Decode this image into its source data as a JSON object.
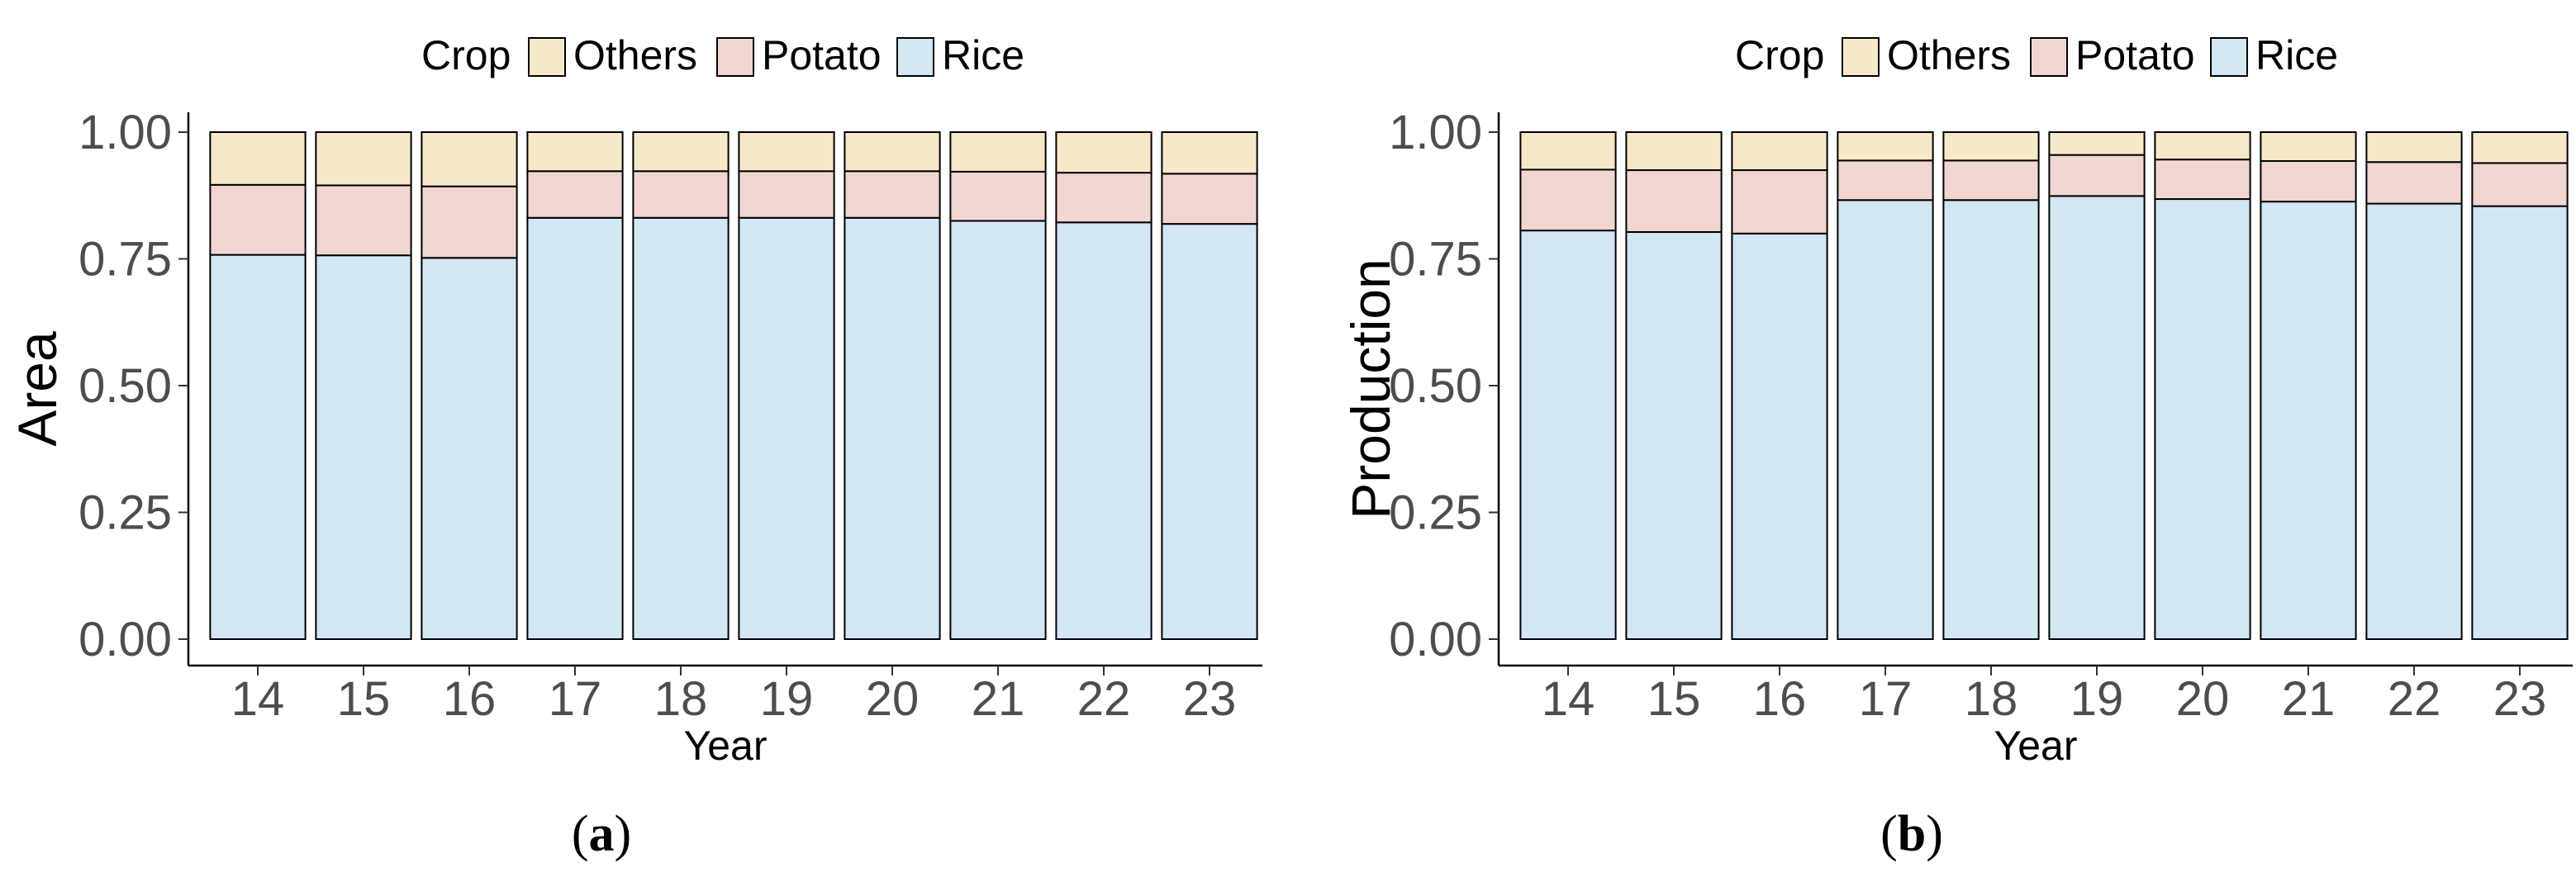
{
  "colors": {
    "Rice": "#d2e6f4",
    "Potato": "#f1d5d0",
    "Others": "#f6e8c9",
    "outline": "#000000",
    "tick_text": "#4d4d4d",
    "axis_title": "#000000"
  },
  "legend": {
    "title": "Crop",
    "entries": [
      "Others",
      "Potato",
      "Rice"
    ]
  },
  "chart_data": [
    {
      "type": "bar",
      "stacked": true,
      "panel_label": "(a)",
      "xlabel": "Year",
      "ylabel": "Area",
      "ylim": [
        0,
        1
      ],
      "yticks": [
        "0.00",
        "0.25",
        "0.50",
        "0.75",
        "1.00"
      ],
      "categories": [
        "14",
        "15",
        "16",
        "17",
        "18",
        "19",
        "20",
        "21",
        "22",
        "23"
      ],
      "legend_position": "top",
      "grid": false,
      "series": [
        {
          "name": "Rice",
          "values": [
            0.758,
            0.757,
            0.752,
            0.831,
            0.831,
            0.831,
            0.831,
            0.825,
            0.822,
            0.819
          ]
        },
        {
          "name": "Potato",
          "values": [
            0.138,
            0.138,
            0.141,
            0.092,
            0.092,
            0.092,
            0.092,
            0.097,
            0.098,
            0.099
          ]
        },
        {
          "name": "Others",
          "values": [
            0.104,
            0.105,
            0.107,
            0.077,
            0.077,
            0.077,
            0.077,
            0.078,
            0.08,
            0.082
          ]
        }
      ]
    },
    {
      "type": "bar",
      "stacked": true,
      "panel_label": "(b)",
      "xlabel": "Year",
      "ylabel": "Production",
      "ylim": [
        0,
        1
      ],
      "yticks": [
        "0.00",
        "0.25",
        "0.50",
        "0.75",
        "1.00"
      ],
      "categories": [
        "14",
        "15",
        "16",
        "17",
        "18",
        "19",
        "20",
        "21",
        "22",
        "23"
      ],
      "legend_position": "top",
      "grid": false,
      "series": [
        {
          "name": "Rice",
          "values": [
            0.806,
            0.803,
            0.8,
            0.866,
            0.866,
            0.874,
            0.868,
            0.863,
            0.859,
            0.854
          ]
        },
        {
          "name": "Potato",
          "values": [
            0.12,
            0.122,
            0.125,
            0.078,
            0.078,
            0.081,
            0.078,
            0.08,
            0.082,
            0.085
          ]
        },
        {
          "name": "Others",
          "values": [
            0.074,
            0.075,
            0.075,
            0.056,
            0.056,
            0.045,
            0.054,
            0.057,
            0.059,
            0.061
          ]
        }
      ]
    }
  ]
}
